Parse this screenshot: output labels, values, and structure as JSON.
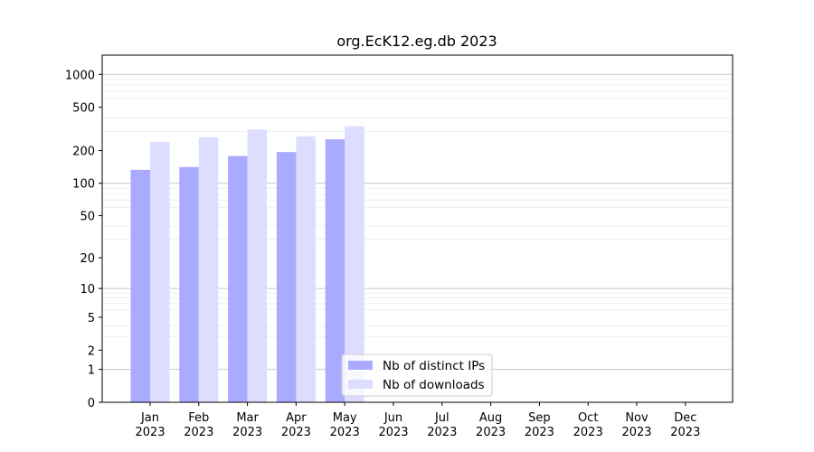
{
  "chart_data": {
    "type": "bar",
    "title": "org.EcK12.eg.db 2023",
    "xlabel": "",
    "ylabel": "",
    "yscale": "log1p",
    "categories": [
      [
        "Jan",
        "2023"
      ],
      [
        "Feb",
        "2023"
      ],
      [
        "Mar",
        "2023"
      ],
      [
        "Apr",
        "2023"
      ],
      [
        "May",
        "2023"
      ],
      [
        "Jun",
        "2023"
      ],
      [
        "Jul",
        "2023"
      ],
      [
        "Aug",
        "2023"
      ],
      [
        "Sep",
        "2023"
      ],
      [
        "Oct",
        "2023"
      ],
      [
        "Nov",
        "2023"
      ],
      [
        "Dec",
        "2023"
      ]
    ],
    "yticks": [
      0,
      1,
      2,
      5,
      10,
      20,
      50,
      100,
      200,
      500,
      1000
    ],
    "ytick_labels": [
      "0",
      "1",
      "2",
      "5",
      "10",
      "20",
      "50",
      "100",
      "200",
      "500",
      "1000"
    ],
    "ylim": [
      0,
      1500
    ],
    "grid": true,
    "legend_position": "bottom-center",
    "series": [
      {
        "name": "Nb of distinct IPs",
        "color": "#aaaaff",
        "values": [
          133,
          141,
          178,
          194,
          254,
          null,
          null,
          null,
          null,
          null,
          null,
          null
        ]
      },
      {
        "name": "Nb of downloads",
        "color": "#ddddff",
        "values": [
          240,
          265,
          313,
          270,
          334,
          null,
          null,
          null,
          null,
          null,
          null,
          null
        ]
      }
    ]
  }
}
